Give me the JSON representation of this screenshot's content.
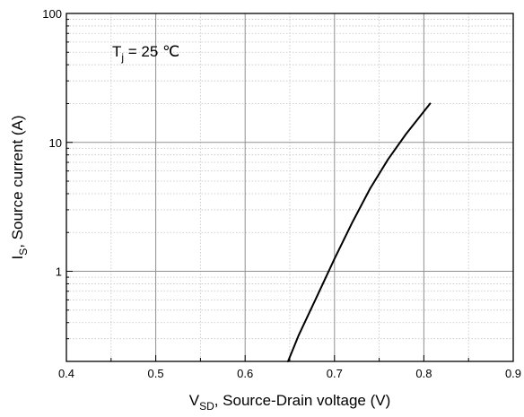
{
  "chart_data": {
    "type": "line",
    "title": "",
    "xlabel": {
      "main": "V",
      "sub": "SD",
      "rest": ", Source-Drain voltage (V)"
    },
    "ylabel": {
      "main": "I",
      "sub": "S",
      "rest": ", Source current (A)"
    },
    "xlim": [
      0.4,
      0.9
    ],
    "ylim": [
      0.2,
      100
    ],
    "yscale": "log",
    "grid": true,
    "x_ticks": [
      0.4,
      0.5,
      0.6,
      0.7,
      0.8,
      0.9
    ],
    "x_tick_labels": [
      "0.4",
      "0.5",
      "0.6",
      "0.7",
      "0.8",
      "0.9"
    ],
    "y_ticks": [
      1,
      10,
      100
    ],
    "y_tick_labels": [
      "1",
      "10",
      "100"
    ],
    "annotation": {
      "main": "T",
      "sub": "j",
      "rest": " = 25 ℃"
    },
    "series": [
      {
        "color": "#000000",
        "x": [
          0.648,
          0.66,
          0.68,
          0.7,
          0.72,
          0.74,
          0.76,
          0.78,
          0.807
        ],
        "y": [
          0.2,
          0.32,
          0.63,
          1.25,
          2.4,
          4.4,
          7.4,
          11.6,
          20
        ]
      }
    ]
  }
}
